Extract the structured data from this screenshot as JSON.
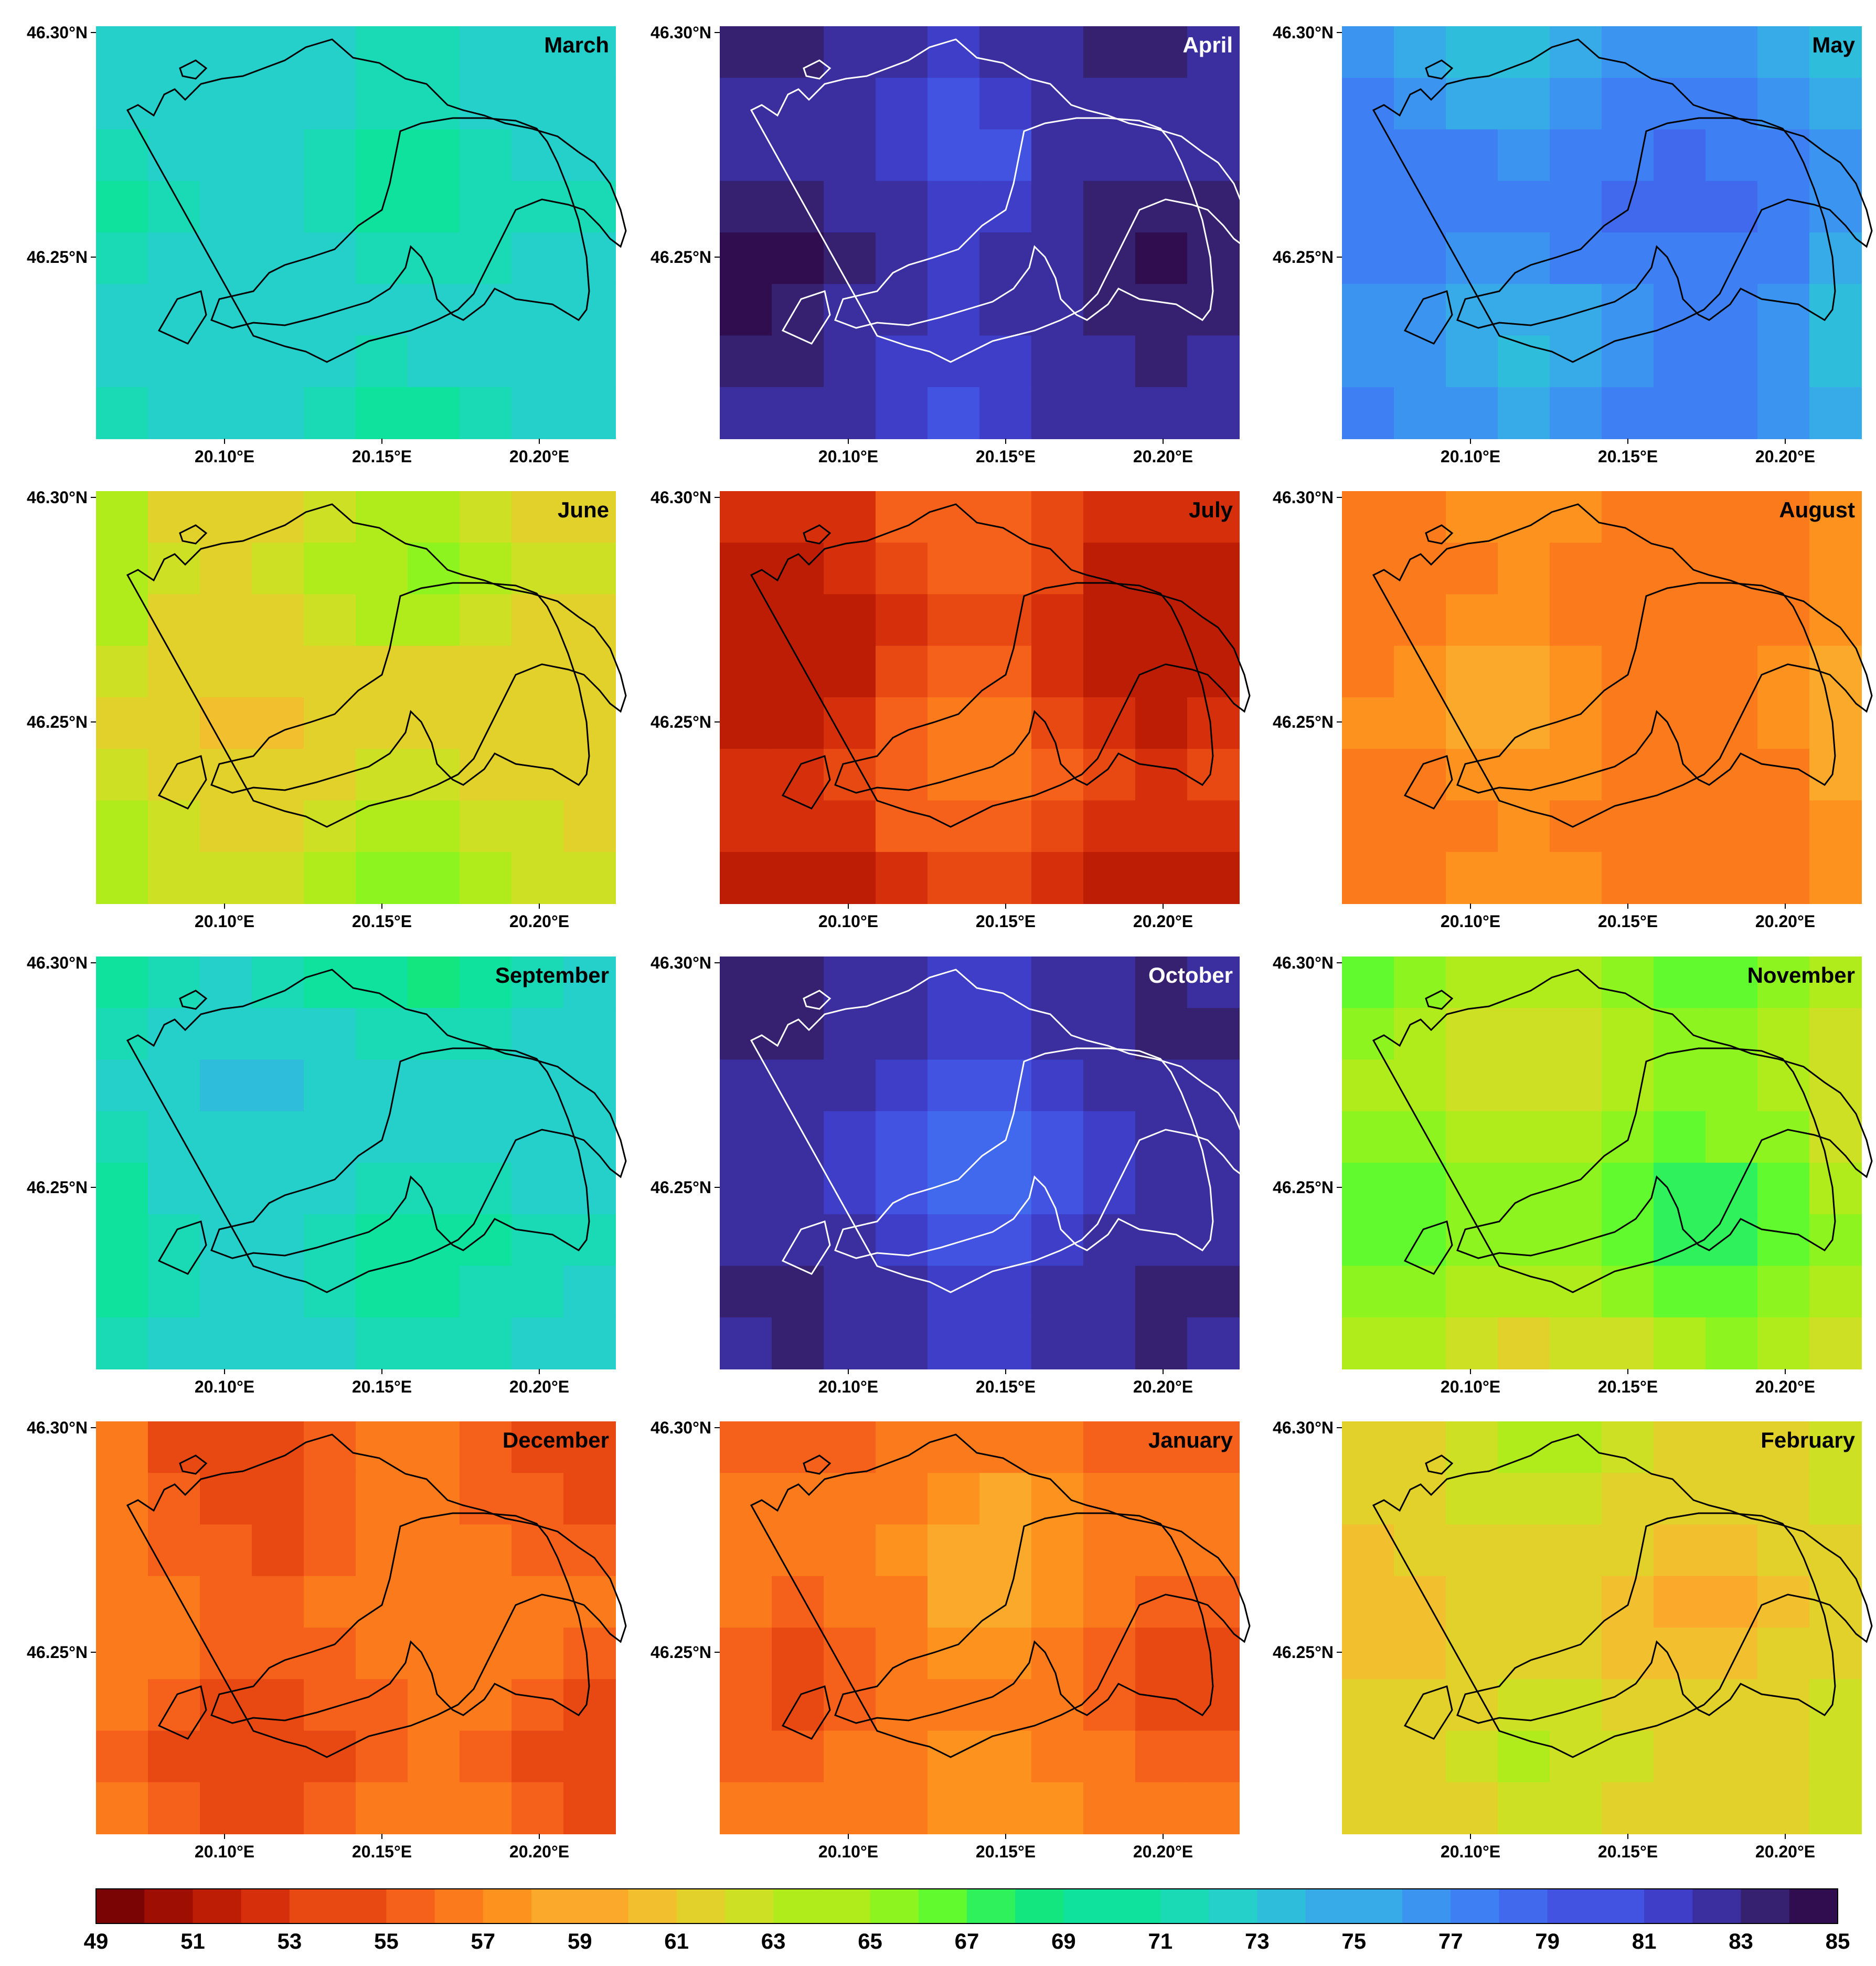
{
  "figure": {
    "axes": {
      "lat_ticks": [
        "46.30°N",
        "46.25°N"
      ],
      "lon_ticks": [
        "20.10°E",
        "20.15°E",
        "20.20°E"
      ]
    },
    "colorbar": {
      "min": 49,
      "max": 85,
      "step": 1,
      "tick_labels": [
        "49",
        "51",
        "53",
        "55",
        "57",
        "59",
        "61",
        "63",
        "65",
        "67",
        "69",
        "71",
        "73",
        "75",
        "77",
        "79",
        "81",
        "83",
        "85"
      ]
    },
    "panels": [
      {
        "title": "March",
        "title_color": "#000000",
        "outline_color": "#000000",
        "base": 71
      },
      {
        "title": "April",
        "title_color": "#ffffff",
        "outline_color": "#ffffff",
        "base": 83
      },
      {
        "title": "May",
        "title_color": "#000000",
        "outline_color": "#000000",
        "base": 76
      },
      {
        "title": "June",
        "title_color": "#000000",
        "outline_color": "#000000",
        "base": 63
      },
      {
        "title": "July",
        "title_color": "#000000",
        "outline_color": "#000000",
        "base": 53
      },
      {
        "title": "August",
        "title_color": "#000000",
        "outline_color": "#000000",
        "base": 58
      },
      {
        "title": "September",
        "title_color": "#000000",
        "outline_color": "#000000",
        "base": 71
      },
      {
        "title": "October",
        "title_color": "#ffffff",
        "outline_color": "#ffffff",
        "base": 82
      },
      {
        "title": "November",
        "title_color": "#000000",
        "outline_color": "#000000",
        "base": 64
      },
      {
        "title": "December",
        "title_color": "#000000",
        "outline_color": "#000000",
        "base": 56
      },
      {
        "title": "January",
        "title_color": "#000000",
        "outline_color": "#000000",
        "base": 56
      },
      {
        "title": "February",
        "title_color": "#000000",
        "outline_color": "#000000",
        "base": 62
      }
    ]
  }
}
